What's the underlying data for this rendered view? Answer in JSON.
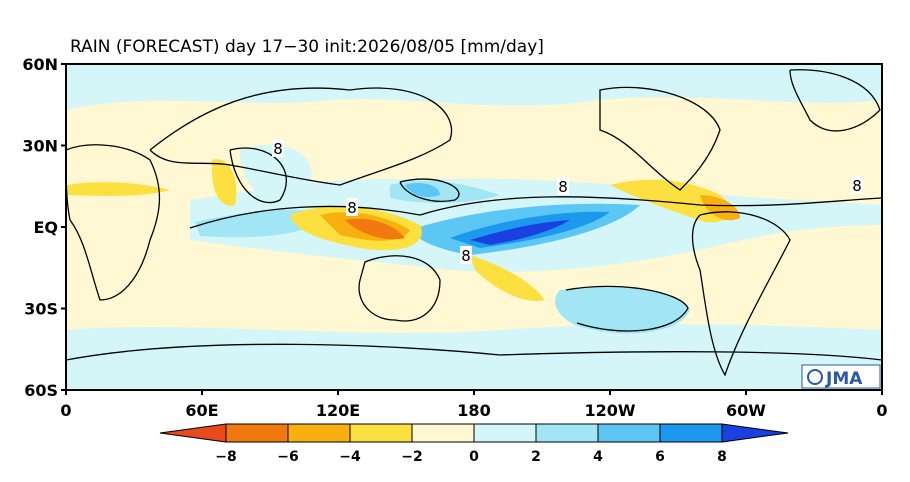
{
  "title": "RAIN (FORECAST) day 17−30 init:2026/08/05 [mm/day]",
  "lat_labels": [
    "60N",
    "30N",
    "EQ",
    "30S",
    "60S"
  ],
  "lon_labels": [
    "0",
    "60E",
    "120E",
    "180",
    "120W",
    "60W",
    "0"
  ],
  "colorbar": {
    "labels": [
      "−8",
      "−6",
      "−4",
      "−2",
      "0",
      "2",
      "4",
      "6",
      "8"
    ],
    "colors": [
      "#e84a1c",
      "#f07a10",
      "#f8b010",
      "#fbe040",
      "#fff8d2",
      "#d4f6f8",
      "#a2e6f6",
      "#5cc6f4",
      "#1c98ec",
      "#1a40e0"
    ]
  },
  "contour_labels": [
    "8",
    "8",
    "8",
    "8",
    "8"
  ],
  "logo": "JMA"
}
